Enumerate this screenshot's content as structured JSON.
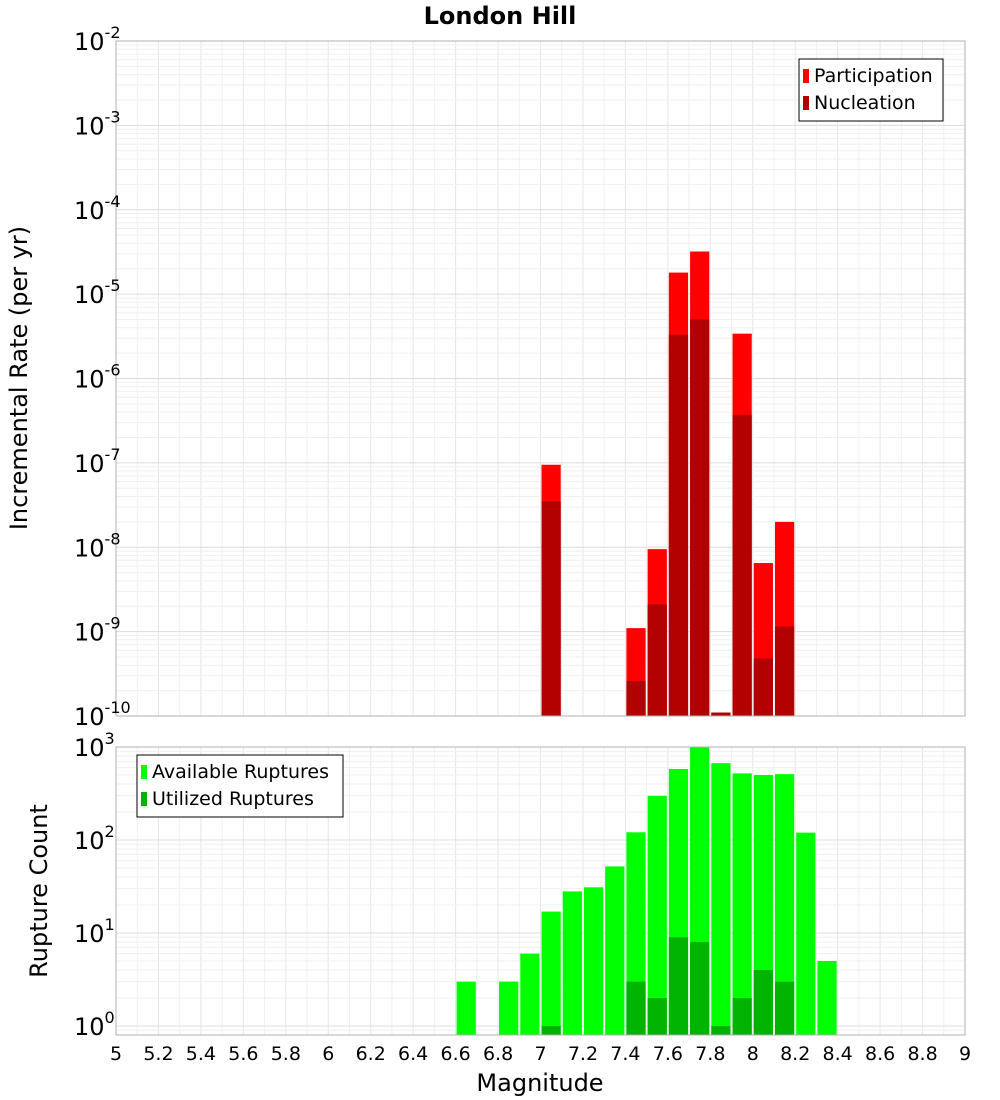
{
  "chart_data": [
    {
      "type": "bar",
      "title": "London Hill",
      "xlabel": "",
      "ylabel": "Incremental Rate (per yr)",
      "ylog": true,
      "ylim": [
        1e-10,
        0.01
      ],
      "yticks": [
        {
          "base": "10",
          "exp": "-2",
          "v": 0.01
        },
        {
          "base": "10",
          "exp": "-3",
          "v": 0.001
        },
        {
          "base": "10",
          "exp": "-4",
          "v": 0.0001
        },
        {
          "base": "10",
          "exp": "-5",
          "v": 1e-05
        },
        {
          "base": "10",
          "exp": "-6",
          "v": 1e-06
        },
        {
          "base": "10",
          "exp": "-7",
          "v": 1e-07
        },
        {
          "base": "10",
          "exp": "-8",
          "v": 1e-08
        },
        {
          "base": "10",
          "exp": "-9",
          "v": 1e-09
        },
        {
          "base": "10",
          "exp": "-10",
          "v": 1e-10
        }
      ],
      "xlim": [
        5,
        9
      ],
      "grid": true,
      "legend_position": "top-right",
      "series": [
        {
          "name": "Participation",
          "color": "#ff0000",
          "x": [
            7.05,
            7.45,
            7.55,
            7.65,
            7.75,
            7.85,
            7.95,
            8.05,
            8.15
          ],
          "values": [
            9.5e-08,
            1.1e-09,
            9.5e-09,
            1.8e-05,
            3.2e-05,
            1.1e-10,
            3.4e-06,
            6.5e-09,
            2e-08
          ]
        },
        {
          "name": "Nucleation",
          "color": "#b30000",
          "x": [
            7.05,
            7.45,
            7.55,
            7.65,
            7.75,
            7.85,
            7.95,
            8.05,
            8.15
          ],
          "values": [
            3.5e-08,
            2.6e-10,
            2.1e-09,
            3.3e-06,
            5e-06,
            1.1e-10,
            3.7e-07,
            4.8e-10,
            1.15e-09
          ]
        }
      ]
    },
    {
      "type": "bar",
      "title": "",
      "xlabel": "Magnitude",
      "ylabel": "Rupture Count",
      "ylog": true,
      "ylim": [
        0.8,
        1000
      ],
      "yticks": [
        {
          "base": "10",
          "exp": "3",
          "v": 1000
        },
        {
          "base": "10",
          "exp": "2",
          "v": 100
        },
        {
          "base": "10",
          "exp": "1",
          "v": 10
        },
        {
          "base": "10",
          "exp": "0",
          "v": 1
        }
      ],
      "xlim": [
        5,
        9
      ],
      "xticks": [
        "5",
        "5.2",
        "5.4",
        "5.6",
        "5.8",
        "6",
        "6.2",
        "6.4",
        "6.6",
        "6.8",
        "7",
        "7.2",
        "7.4",
        "7.6",
        "7.8",
        "8",
        "8.2",
        "8.4",
        "8.6",
        "8.8",
        "9"
      ],
      "grid": true,
      "legend_position": "top-left",
      "series": [
        {
          "name": "Available Ruptures",
          "color": "#00ff00",
          "x": [
            6.65,
            6.85,
            6.95,
            7.05,
            7.15,
            7.25,
            7.35,
            7.45,
            7.55,
            7.65,
            7.75,
            7.85,
            7.95,
            8.05,
            8.15,
            8.25,
            8.35
          ],
          "values": [
            3,
            3,
            6,
            17,
            28,
            31,
            52,
            121,
            298,
            580,
            990,
            670,
            520,
            500,
            510,
            120,
            5
          ]
        },
        {
          "name": "Utilized Ruptures",
          "color": "#00b300",
          "x": [
            7.05,
            7.45,
            7.55,
            7.65,
            7.75,
            7.85,
            7.95,
            8.05,
            8.15
          ],
          "values": [
            1,
            3,
            2,
            9,
            8,
            1,
            2,
            4,
            3
          ]
        }
      ]
    }
  ]
}
